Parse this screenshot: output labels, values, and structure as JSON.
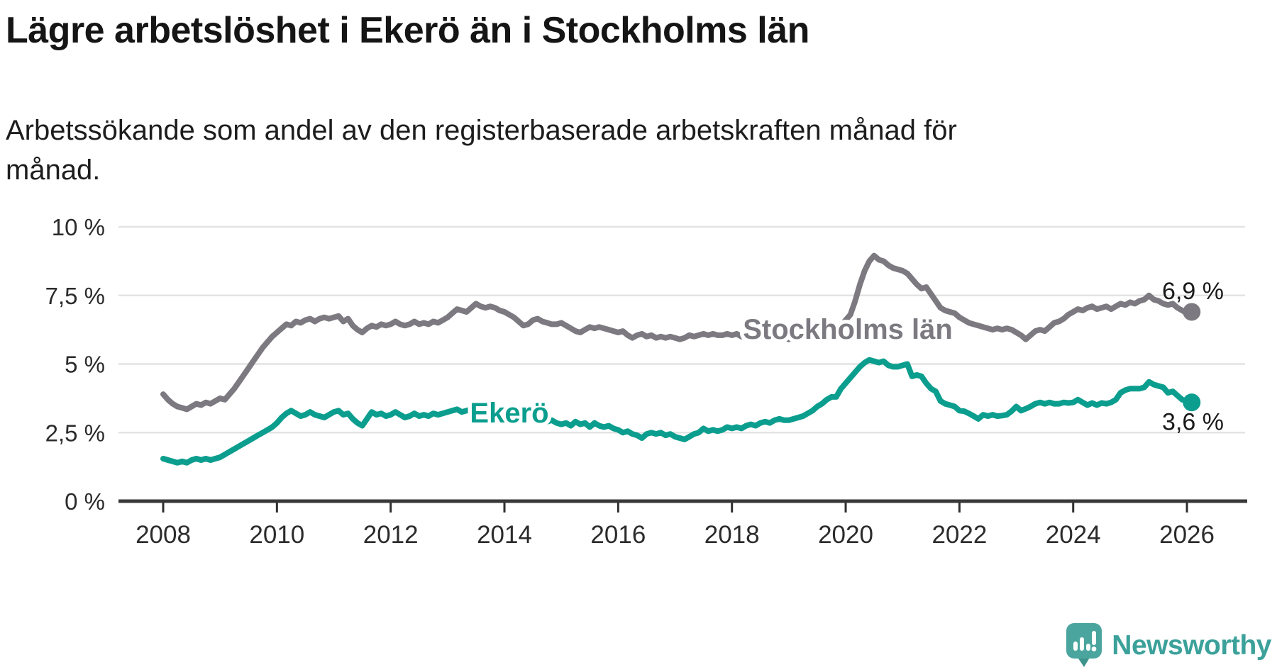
{
  "header": {
    "title": "Lägre arbetslöshet i Ekerö än i Stockholms län",
    "subtitle_lines": [
      "Arbetssökande som andel av den registerbaserade arbetskraften månad för",
      "månad."
    ]
  },
  "footer": {
    "logo_text": "Newsworthy"
  },
  "colors": {
    "series_stockholm": "#7c7a80",
    "series_ekero": "#0b9e8e",
    "grid": "#e3e3e3",
    "axis": "#383838",
    "tick": "#2f2f2f",
    "axis_label": "#2b2b2b",
    "annotation": "#1a1a1a",
    "logo_teal": "#4aa59e",
    "logo_text_color": "#3ba19a",
    "halo": "#ffffff"
  },
  "chart_data": {
    "type": "line",
    "title": "Lägre arbetslöshet i Ekerö än i Stockholms län",
    "subtitle": "Arbetssökande som andel av den registerbaserade arbetskraften månad för månad.",
    "xlabel": "",
    "ylabel": "",
    "ylim": [
      0,
      10
    ],
    "grid": "horizontal",
    "legend_position": "inline-labels",
    "x_start": "2008-01",
    "x_end": "2026-02",
    "x_frequency": "monthly",
    "x_tick_labels": [
      "2008",
      "2010",
      "2012",
      "2014",
      "2016",
      "2018",
      "2020",
      "2022",
      "2024",
      "2026"
    ],
    "y_ticks": [
      {
        "value": 0,
        "label": "0 %"
      },
      {
        "value": 2.5,
        "label": "2,5 %"
      },
      {
        "value": 5,
        "label": "5 %"
      },
      {
        "value": 7.5,
        "label": "7,5 %"
      },
      {
        "value": 10,
        "label": "10 %"
      }
    ],
    "series": [
      {
        "name": "Stockholms län",
        "color": "#7c7a80",
        "end_label": "6,9 %",
        "end_value": 6.9,
        "values": [
          3.9,
          3.7,
          3.55,
          3.45,
          3.4,
          3.35,
          3.45,
          3.55,
          3.5,
          3.6,
          3.55,
          3.65,
          3.75,
          3.7,
          3.9,
          4.1,
          4.35,
          4.6,
          4.85,
          5.1,
          5.35,
          5.6,
          5.8,
          6.0,
          6.15,
          6.3,
          6.45,
          6.4,
          6.55,
          6.5,
          6.6,
          6.65,
          6.55,
          6.65,
          6.7,
          6.65,
          6.7,
          6.75,
          6.55,
          6.65,
          6.4,
          6.25,
          6.15,
          6.3,
          6.4,
          6.35,
          6.45,
          6.4,
          6.45,
          6.55,
          6.45,
          6.4,
          6.45,
          6.55,
          6.45,
          6.5,
          6.45,
          6.55,
          6.5,
          6.6,
          6.7,
          6.85,
          7.0,
          6.95,
          6.9,
          7.05,
          7.2,
          7.1,
          7.05,
          7.1,
          7.05,
          6.95,
          6.9,
          6.8,
          6.7,
          6.55,
          6.4,
          6.45,
          6.6,
          6.65,
          6.55,
          6.5,
          6.45,
          6.45,
          6.5,
          6.4,
          6.3,
          6.2,
          6.15,
          6.25,
          6.35,
          6.3,
          6.35,
          6.3,
          6.25,
          6.2,
          6.15,
          6.2,
          6.05,
          5.95,
          6.05,
          6.1,
          6.0,
          6.05,
          5.95,
          6.0,
          5.95,
          6.0,
          5.95,
          5.9,
          5.95,
          6.05,
          6.0,
          6.05,
          6.1,
          6.05,
          6.1,
          6.05,
          6.05,
          6.1,
          6.05,
          6.1,
          6.0,
          6.05,
          5.95,
          6.0,
          6.05,
          5.95,
          6.0,
          5.95,
          6.0,
          5.95,
          5.9,
          5.95,
          6.0,
          5.95,
          6.05,
          6.1,
          6.05,
          6.1,
          6.15,
          6.2,
          6.3,
          6.4,
          6.6,
          6.8,
          7.3,
          7.9,
          8.4,
          8.75,
          8.95,
          8.8,
          8.75,
          8.6,
          8.5,
          8.45,
          8.4,
          8.3,
          8.1,
          7.9,
          7.75,
          7.8,
          7.55,
          7.3,
          7.05,
          6.95,
          6.9,
          6.85,
          6.7,
          6.6,
          6.5,
          6.45,
          6.4,
          6.35,
          6.3,
          6.25,
          6.3,
          6.25,
          6.3,
          6.25,
          6.15,
          6.05,
          5.9,
          6.05,
          6.2,
          6.25,
          6.2,
          6.35,
          6.5,
          6.55,
          6.65,
          6.8,
          6.9,
          7.0,
          6.95,
          7.05,
          7.1,
          7.0,
          7.05,
          7.1,
          7.0,
          7.1,
          7.2,
          7.15,
          7.25,
          7.2,
          7.3,
          7.35,
          7.5,
          7.35,
          7.3,
          7.2,
          7.15,
          7.2,
          7.05,
          6.95,
          6.85,
          6.9
        ]
      },
      {
        "name": "Ekerö",
        "color": "#0b9e8e",
        "end_label": "3,6 %",
        "end_value": 3.6,
        "values": [
          1.55,
          1.5,
          1.45,
          1.4,
          1.45,
          1.4,
          1.5,
          1.55,
          1.5,
          1.55,
          1.5,
          1.55,
          1.6,
          1.7,
          1.8,
          1.9,
          2.0,
          2.1,
          2.2,
          2.3,
          2.4,
          2.5,
          2.6,
          2.7,
          2.85,
          3.05,
          3.2,
          3.3,
          3.2,
          3.1,
          3.15,
          3.25,
          3.15,
          3.1,
          3.05,
          3.15,
          3.25,
          3.3,
          3.15,
          3.2,
          3.0,
          2.85,
          2.75,
          3.0,
          3.25,
          3.15,
          3.2,
          3.1,
          3.15,
          3.25,
          3.15,
          3.05,
          3.1,
          3.2,
          3.1,
          3.15,
          3.1,
          3.2,
          3.15,
          3.2,
          3.25,
          3.3,
          3.35,
          3.25,
          3.3,
          3.35,
          3.4,
          3.35,
          3.3,
          3.35,
          3.3,
          3.25,
          3.2,
          3.25,
          3.15,
          3.2,
          3.1,
          3.15,
          3.05,
          3.0,
          2.95,
          2.9,
          2.95,
          2.85,
          2.8,
          2.85,
          2.75,
          2.9,
          2.8,
          2.85,
          2.7,
          2.85,
          2.75,
          2.7,
          2.75,
          2.65,
          2.6,
          2.5,
          2.55,
          2.45,
          2.4,
          2.3,
          2.45,
          2.5,
          2.45,
          2.5,
          2.4,
          2.45,
          2.35,
          2.3,
          2.25,
          2.35,
          2.45,
          2.5,
          2.65,
          2.55,
          2.6,
          2.55,
          2.6,
          2.7,
          2.65,
          2.7,
          2.65,
          2.75,
          2.8,
          2.75,
          2.85,
          2.9,
          2.85,
          2.95,
          3.0,
          2.95,
          2.95,
          3.0,
          3.05,
          3.1,
          3.2,
          3.3,
          3.45,
          3.55,
          3.7,
          3.8,
          3.8,
          4.1,
          4.3,
          4.5,
          4.7,
          4.9,
          5.05,
          5.15,
          5.1,
          5.05,
          5.1,
          4.95,
          4.9,
          4.9,
          4.95,
          5.0,
          4.55,
          4.6,
          4.55,
          4.3,
          4.1,
          4.0,
          3.65,
          3.55,
          3.5,
          3.45,
          3.3,
          3.28,
          3.2,
          3.1,
          3.0,
          3.15,
          3.1,
          3.15,
          3.1,
          3.12,
          3.15,
          3.28,
          3.45,
          3.3,
          3.37,
          3.45,
          3.55,
          3.6,
          3.55,
          3.6,
          3.55,
          3.55,
          3.6,
          3.58,
          3.6,
          3.7,
          3.6,
          3.5,
          3.58,
          3.5,
          3.58,
          3.55,
          3.6,
          3.7,
          3.95,
          4.05,
          4.1,
          4.1,
          4.1,
          4.15,
          4.35,
          4.25,
          4.2,
          4.15,
          3.95,
          4.0,
          3.85,
          3.7,
          3.65,
          3.6
        ]
      }
    ]
  }
}
